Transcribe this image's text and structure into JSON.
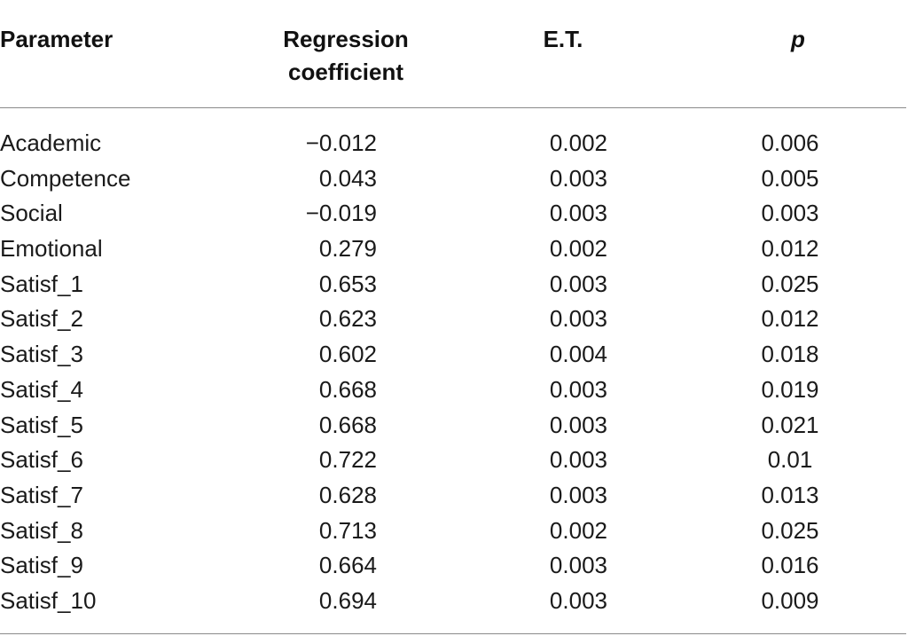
{
  "table": {
    "headers": {
      "parameter": "Parameter",
      "coef_line1": "Regression",
      "coef_line2": "coefficient",
      "et": "E.T.",
      "p": "p"
    },
    "rows": [
      {
        "parameter": "Academic",
        "coef": "−0.012",
        "et": "0.002",
        "p": "0.006"
      },
      {
        "parameter": "Competence",
        "coef": "0.043",
        "et": "0.003",
        "p": "0.005"
      },
      {
        "parameter": "Social",
        "coef": "−0.019",
        "et": "0.003",
        "p": "0.003"
      },
      {
        "parameter": "Emotional",
        "coef": "0.279",
        "et": "0.002",
        "p": "0.012"
      },
      {
        "parameter": "Satisf_1",
        "coef": "0.653",
        "et": "0.003",
        "p": "0.025"
      },
      {
        "parameter": "Satisf_2",
        "coef": "0.623",
        "et": "0.003",
        "p": "0.012"
      },
      {
        "parameter": "Satisf_3",
        "coef": "0.602",
        "et": "0.004",
        "p": "0.018"
      },
      {
        "parameter": "Satisf_4",
        "coef": "0.668",
        "et": "0.003",
        "p": "0.019"
      },
      {
        "parameter": "Satisf_5",
        "coef": "0.668",
        "et": "0.003",
        "p": "0.021"
      },
      {
        "parameter": "Satisf_6",
        "coef": "0.722",
        "et": "0.003",
        "p": "0.01"
      },
      {
        "parameter": "Satisf_7",
        "coef": "0.628",
        "et": "0.003",
        "p": "0.013"
      },
      {
        "parameter": "Satisf_8",
        "coef": "0.713",
        "et": "0.002",
        "p": "0.025"
      },
      {
        "parameter": "Satisf_9",
        "coef": "0.664",
        "et": "0.003",
        "p": "0.016"
      },
      {
        "parameter": "Satisf_10",
        "coef": "0.694",
        "et": "0.003",
        "p": "0.009"
      }
    ]
  }
}
